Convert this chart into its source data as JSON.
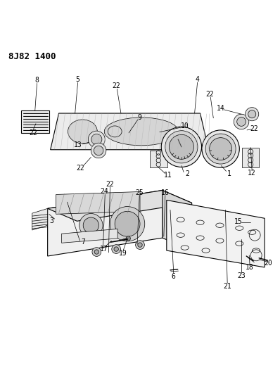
{
  "title": "8J82 1400",
  "background_color": "#ffffff",
  "line_color": "#000000",
  "fig_width": 3.98,
  "fig_height": 5.33,
  "dpi": 100
}
